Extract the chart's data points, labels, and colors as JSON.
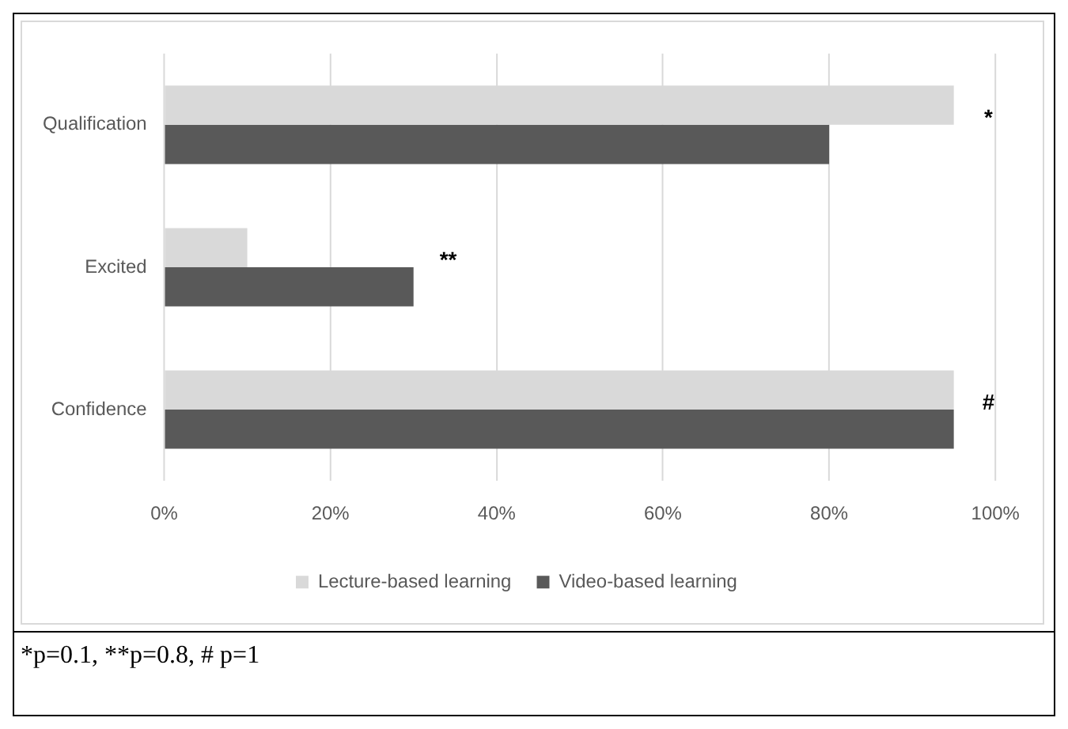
{
  "chart_data": {
    "type": "bar",
    "orientation": "horizontal",
    "categories": [
      "Qualification",
      "Excited",
      "Confidence"
    ],
    "series": [
      {
        "name": "Lecture-based learning",
        "color": "#d9d9d9",
        "values": [
          95,
          10,
          95
        ]
      },
      {
        "name": "Video-based learning",
        "color": "#595959",
        "values": [
          80,
          30,
          95
        ]
      }
    ],
    "xlim": [
      0,
      100
    ],
    "xticks": [
      {
        "value": 0,
        "label": "0%"
      },
      {
        "value": 20,
        "label": "20%"
      },
      {
        "value": 40,
        "label": "40%"
      },
      {
        "value": 60,
        "label": "60%"
      },
      {
        "value": 80,
        "label": "80%"
      },
      {
        "value": 100,
        "label": "100%"
      }
    ],
    "grid": "x",
    "legend": "bottom",
    "annotations": [
      "*",
      "**",
      "#",
      "*p=0.1, **p=0.8, # p=1"
    ]
  }
}
